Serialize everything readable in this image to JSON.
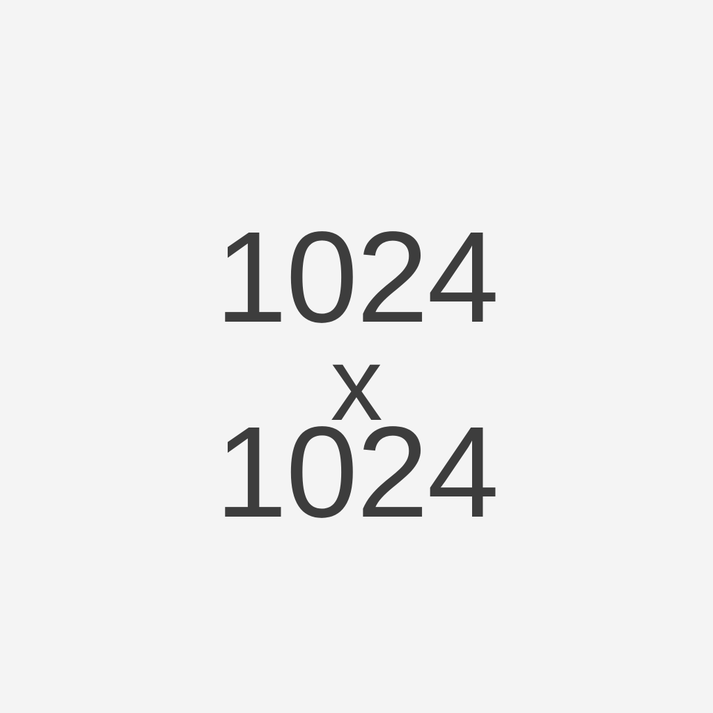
{
  "placeholder": {
    "width_text": "1024",
    "separator": "x",
    "height_text": "1024"
  },
  "colors": {
    "background": "#f4f4f4",
    "text": "#3d3d3d"
  }
}
